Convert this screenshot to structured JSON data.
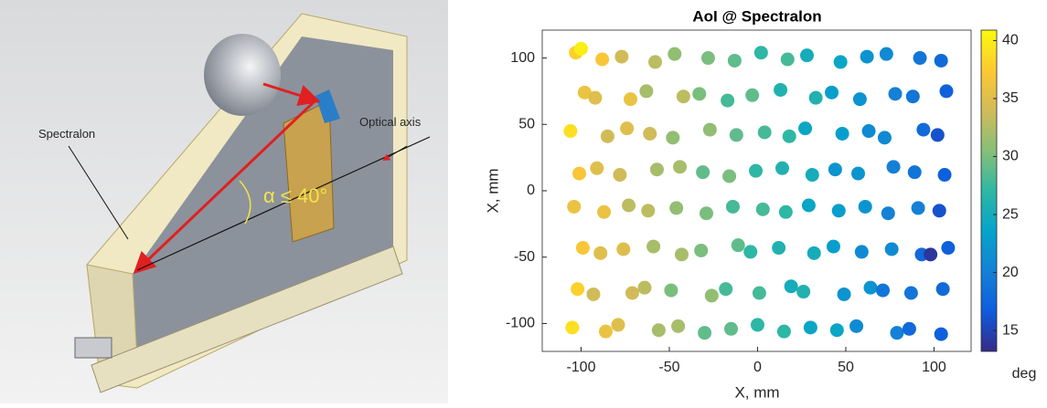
{
  "figure": {
    "labels": {
      "spectralon": "Spectralon",
      "optical_axis": "Optical axis",
      "angle": "α ≤ 40°"
    }
  },
  "chart_data": {
    "type": "scatter",
    "title": "AoI @ Spectralon",
    "xlabel": "X, mm",
    "ylabel": "X, mm",
    "x": [
      -103,
      -88,
      -77,
      -58,
      -47,
      -28,
      -13,
      2,
      17,
      28,
      47,
      62,
      73,
      92,
      104,
      -98,
      -92,
      -72,
      -63,
      -42,
      -33,
      -17,
      -3,
      13,
      33,
      42,
      58,
      78,
      88,
      107,
      -106,
      -85,
      -74,
      -61,
      -48,
      -27,
      -12,
      4,
      18,
      27,
      48,
      63,
      72,
      94,
      102,
      -101,
      -91,
      -78,
      -57,
      -44,
      -31,
      -16,
      -1,
      14,
      31,
      44,
      57,
      77,
      89,
      106,
      -104,
      -87,
      -73,
      -62,
      -46,
      -29,
      -14,
      3,
      16,
      29,
      46,
      61,
      74,
      91,
      103,
      -99,
      -89,
      -76,
      -59,
      -43,
      -32,
      -11,
      -4,
      12,
      32,
      43,
      59,
      76,
      93,
      108,
      -102,
      -93,
      -71,
      -64,
      -49,
      -26,
      -18,
      1,
      19,
      26,
      49,
      64,
      71,
      87,
      105,
      -105,
      -86,
      -79,
      -56,
      -45,
      -30,
      -15,
      0,
      15,
      30,
      45,
      56,
      79,
      86,
      104,
      98,
      -100
    ],
    "y": [
      104,
      99,
      101,
      97,
      103,
      100,
      98,
      104,
      99,
      102,
      97,
      101,
      103,
      100,
      98,
      74,
      70,
      69,
      75,
      71,
      73,
      68,
      72,
      76,
      70,
      74,
      69,
      73,
      71,
      75,
      45,
      41,
      47,
      43,
      40,
      46,
      42,
      44,
      41,
      47,
      43,
      45,
      40,
      46,
      42,
      13,
      17,
      12,
      16,
      18,
      14,
      11,
      15,
      17,
      12,
      16,
      13,
      18,
      14,
      12,
      -12,
      -16,
      -11,
      -15,
      -13,
      -17,
      -12,
      -14,
      -16,
      -11,
      -15,
      -12,
      -17,
      -13,
      -15,
      -43,
      -47,
      -44,
      -42,
      -48,
      -45,
      -41,
      -46,
      -43,
      -47,
      -42,
      -46,
      -44,
      -48,
      -43,
      -74,
      -78,
      -77,
      -73,
      -75,
      -79,
      -74,
      -77,
      -72,
      -76,
      -78,
      -73,
      -75,
      -77,
      -74,
      -103,
      -106,
      -101,
      -105,
      -102,
      -107,
      -104,
      -101,
      -106,
      -103,
      -105,
      -102,
      -107,
      -104,
      -108,
      -48,
      107
    ],
    "values": [
      38,
      37,
      34,
      33,
      31,
      30,
      29,
      27,
      28,
      25,
      24,
      22,
      21,
      19,
      18,
      36,
      35,
      36,
      32,
      33,
      30,
      28,
      29,
      26,
      26,
      23,
      22,
      20,
      19,
      17,
      39,
      34,
      35,
      34,
      31,
      31,
      29,
      28,
      27,
      24,
      23,
      21,
      21,
      18,
      16,
      37,
      35,
      34,
      32,
      32,
      29,
      30,
      27,
      26,
      25,
      22,
      22,
      20,
      19,
      17,
      36,
      36,
      33,
      33,
      31,
      30,
      28,
      28,
      27,
      24,
      23,
      22,
      20,
      20,
      16,
      37,
      35,
      35,
      32,
      32,
      30,
      29,
      27,
      26,
      25,
      23,
      21,
      21,
      18,
      17,
      38,
      34,
      34,
      33,
      30,
      31,
      28,
      28,
      25,
      26,
      22,
      22,
      19,
      19,
      18,
      39,
      36,
      35,
      32,
      32,
      29,
      29,
      27,
      27,
      24,
      24,
      21,
      20,
      18,
      17,
      14,
      40
    ],
    "xlim": [
      -122,
      121
    ],
    "ylim": [
      -121,
      121
    ],
    "xticks": [
      -100,
      -50,
      0,
      50,
      100
    ],
    "yticks": [
      -100,
      -50,
      0,
      50,
      100
    ],
    "colorbar": {
      "label": "deg",
      "lim": [
        13.2,
        40.9
      ],
      "ticks": [
        15,
        20,
        25,
        30,
        35,
        40
      ],
      "colormap": [
        "#352a87",
        "#0f5cdd",
        "#1481d6",
        "#06a4ca",
        "#2eb7a4",
        "#87bf77",
        "#d1bb59",
        "#fec832",
        "#f9fb0e"
      ]
    }
  }
}
